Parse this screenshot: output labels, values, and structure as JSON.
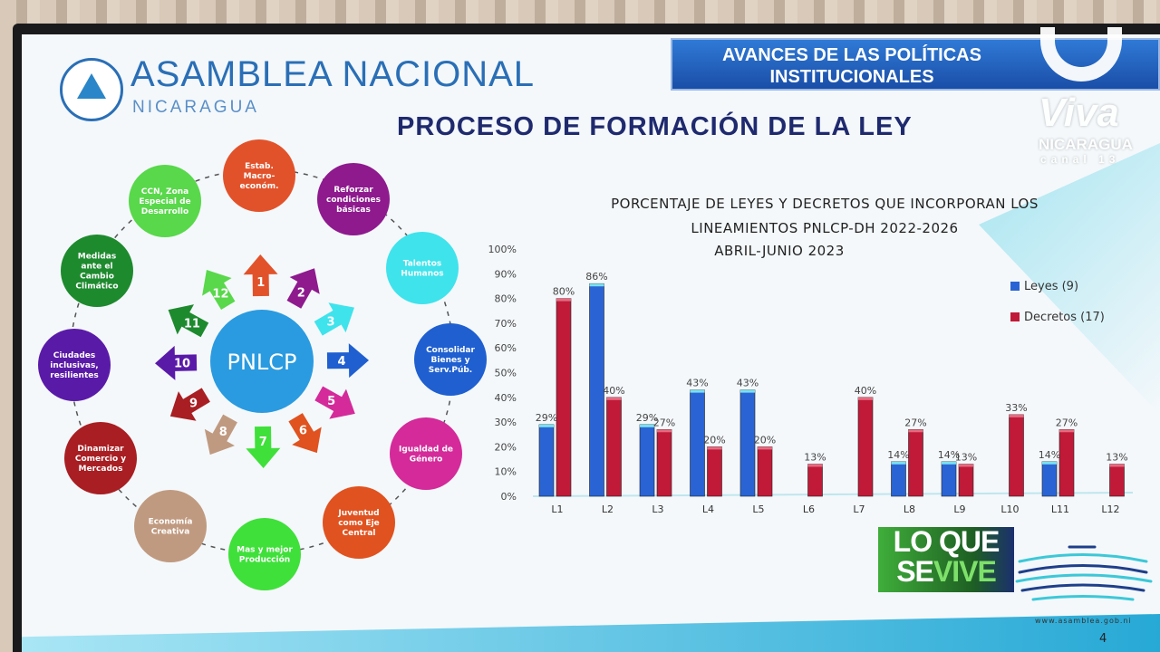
{
  "slide": {
    "org_name": "ASAMBLEA NACIONAL",
    "org_sub": "NICARAGUA",
    "banner_line1": "AVANCES DE LAS POLÍTICAS",
    "banner_line2": "INSTITUCIONALES",
    "title": "PROCESO DE FORMACIÓN DE LA LEY",
    "url": "www.asamblea.gob.ni",
    "page_number": "4"
  },
  "diagram": {
    "center": "PNLCP",
    "center_color": "#2a9be0",
    "nodes": [
      {
        "n": "1",
        "label": [
          "Estab.",
          "Macro-",
          "económ."
        ],
        "color": "#e2522a"
      },
      {
        "n": "2",
        "label": [
          "Reforzar",
          "condiciones",
          "básicas"
        ],
        "color": "#8e1a8e"
      },
      {
        "n": "3",
        "label": [
          "Talentos",
          "Humanos"
        ],
        "color": "#3fe3ec"
      },
      {
        "n": "4",
        "label": [
          "Consolidar",
          "Bienes y",
          "Serv.Púb."
        ],
        "color": "#1f5fd0"
      },
      {
        "n": "5",
        "label": [
          "Igualdad de",
          "Género"
        ],
        "color": "#d42a9a"
      },
      {
        "n": "6",
        "label": [
          "Juventud",
          "como Eje",
          "Central"
        ],
        "color": "#e0521f"
      },
      {
        "n": "7",
        "label": [
          "Mas y mejor",
          "Producción"
        ],
        "color": "#3fe03a"
      },
      {
        "n": "8",
        "label": [
          "Economía",
          "Creativa"
        ],
        "color": "#c09a80"
      },
      {
        "n": "9",
        "label": [
          "Dinamizar",
          "Comercio y",
          "Mercados"
        ],
        "color": "#a81e22"
      },
      {
        "n": "10",
        "label": [
          "Ciudades",
          "inclusivas,",
          "resilientes"
        ],
        "color": "#5a1aa8"
      },
      {
        "n": "11",
        "label": [
          "Medidas",
          "ante el",
          "Cambio",
          "Climático"
        ],
        "color": "#1e8a2e"
      },
      {
        "n": "12",
        "label": [
          "CCN, Zona",
          "Especial de",
          "Desarrollo"
        ],
        "color": "#58d84a"
      }
    ]
  },
  "chart_data": {
    "type": "bar",
    "title": [
      "PORCENTAJE DE LEYES Y DECRETOS QUE INCORPORAN LOS",
      "LINEAMIENTOS PNLCP-DH  2022-2026",
      "ABRIL-JUNIO 2023"
    ],
    "categories": [
      "L1",
      "L2",
      "L3",
      "L4",
      "L5",
      "L6",
      "L7",
      "L8",
      "L9",
      "L10",
      "L11",
      "L12"
    ],
    "series": [
      {
        "name": "Leyes (9)",
        "color": "#2a64d4",
        "values": [
          29,
          86,
          29,
          43,
          43,
          null,
          null,
          14,
          14,
          null,
          14,
          null
        ]
      },
      {
        "name": "Decretos (17)",
        "color": "#c01a38",
        "values": [
          80,
          40,
          27,
          20,
          20,
          13,
          40,
          27,
          13,
          33,
          27,
          13
        ]
      }
    ],
    "yticks": [
      "0%",
      "10%",
      "20%",
      "30%",
      "40%",
      "50%",
      "60%",
      "70%",
      "80%",
      "90%",
      "100%"
    ],
    "ylim": [
      0,
      100
    ],
    "xlabel": "",
    "ylabel": "",
    "legend": "right",
    "grid": false
  },
  "watermarks": {
    "channel_top": "Viva",
    "channel_mid": "NICARAGUA",
    "channel_bot": "canal 13",
    "show_line1": "LO QUE",
    "show_line2_a": "SE",
    "show_line2_b": "VIVE"
  }
}
